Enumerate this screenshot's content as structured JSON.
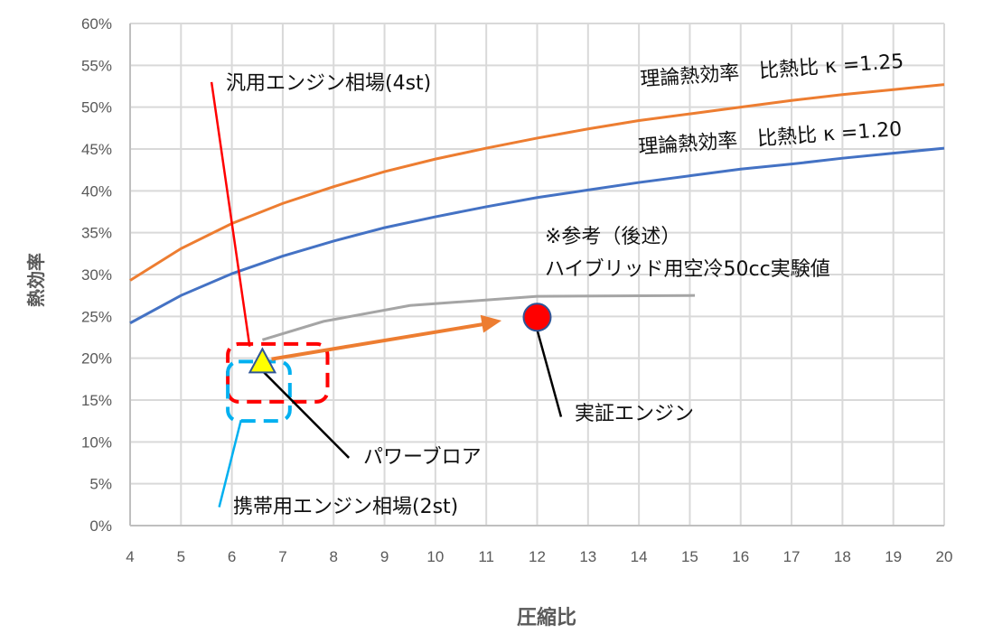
{
  "chart_data": {
    "type": "line",
    "title": "",
    "xlabel": "圧縮比",
    "ylabel": "熱効率",
    "xlim": [
      4,
      20
    ],
    "ylim": [
      0,
      60
    ],
    "grid": true,
    "x_ticks": [
      4,
      5,
      6,
      7,
      8,
      9,
      10,
      11,
      12,
      13,
      14,
      15,
      16,
      17,
      18,
      19,
      20
    ],
    "y_ticks": [
      "0%",
      "5%",
      "10%",
      "15%",
      "20%",
      "25%",
      "30%",
      "35%",
      "40%",
      "45%",
      "50%",
      "55%",
      "60%"
    ],
    "series": [
      {
        "name": "理論熱効率　比熱比 κ =1.25",
        "color": "#ED7D31",
        "kappa": 1.25,
        "x": [
          4,
          5,
          6,
          7,
          8,
          9,
          10,
          11,
          12,
          13,
          14,
          15,
          16,
          17,
          18,
          19,
          20
        ],
        "y": [
          29.3,
          33.1,
          36.1,
          38.5,
          40.5,
          42.3,
          43.8,
          45.1,
          46.3,
          47.4,
          48.4,
          49.2,
          50.0,
          50.8,
          51.5,
          52.1,
          52.7
        ]
      },
      {
        "name": "理論熱効率　比熱比 κ =1.20",
        "color": "#4472C4",
        "kappa": 1.2,
        "x": [
          4,
          5,
          6,
          7,
          8,
          9,
          10,
          11,
          12,
          13,
          14,
          15,
          16,
          17,
          18,
          19,
          20
        ],
        "y": [
          24.2,
          27.5,
          30.1,
          32.2,
          34.0,
          35.6,
          36.9,
          38.1,
          39.2,
          40.1,
          41.0,
          41.8,
          42.6,
          43.2,
          43.9,
          44.5,
          45.1
        ]
      },
      {
        "name": "※参考（後述） ハイブリッド用空冷50cc実験値",
        "color": "#A5A5A5",
        "x": [
          6.6,
          7.8,
          9.5,
          12,
          15.1
        ],
        "y": [
          22.2,
          24.4,
          26.3,
          27.4,
          27.5
        ]
      }
    ],
    "points": [
      {
        "name": "パワーブロア",
        "x": 6.6,
        "y": 19.6,
        "shape": "triangle",
        "color": "#FFFF00"
      },
      {
        "name": "実証エンジン",
        "x": 12,
        "y": 24.9,
        "shape": "circle",
        "color": "#FF0000"
      }
    ],
    "regions": [
      {
        "name": "汎用エンジン相場(4st)",
        "x": [
          5.92,
          7.88
        ],
        "y": [
          14.8,
          21.7
        ],
        "color": "#FF0000"
      },
      {
        "name": "携帯用エンジン相場(2st)",
        "x": [
          5.92,
          7.14
        ],
        "y": [
          12.5,
          19.6
        ],
        "color": "#00B0F0"
      }
    ],
    "arrow": {
      "from": [
        6.78,
        19.9
      ],
      "to": [
        11.3,
        24.5
      ],
      "color": "#ED7D31"
    },
    "annotations": {
      "curve125": "理論熱効率　比熱比 κ =1.25",
      "curve120": "理論熱効率　比熱比 κ =1.20",
      "ref1": "※参考（後述）",
      "ref2": "ハイブリッド用空冷50cc実験値",
      "general": "汎用エンジン相場(4st)",
      "portable": "携帯用エンジン相場(2st)",
      "blower": "パワーブロア",
      "demo": "実証エンジン"
    },
    "leaders": [
      {
        "from": [
          5.6,
          53.0
        ],
        "to": [
          6.35,
          21.4
        ],
        "color": "#FF0000"
      },
      {
        "from": [
          5.75,
          2.2
        ],
        "to": [
          6.18,
          12.6
        ],
        "color": "#00B0F0"
      },
      {
        "from": [
          6.6,
          18.5
        ],
        "to": [
          8.3,
          8.1
        ],
        "color": "#000000"
      },
      {
        "from": [
          12,
          23.4
        ],
        "to": [
          12.47,
          13.0
        ],
        "color": "#000000"
      }
    ]
  }
}
